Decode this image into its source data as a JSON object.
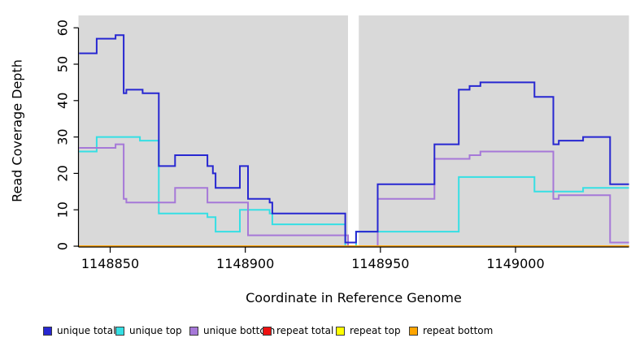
{
  "chart_data": {
    "type": "line",
    "subtype": "step",
    "xlabel": "Coordinate in Reference Genome",
    "ylabel": "Read Coverage Depth",
    "xlim": [
      1148838.5,
      1149042
    ],
    "ylim": [
      0,
      63.4
    ],
    "x_ticks": [
      1148850,
      1148900,
      1148950,
      1149000
    ],
    "y_ticks": [
      0,
      10,
      20,
      30,
      40,
      50,
      60
    ],
    "grid": false,
    "panel_background": "#d9d9d9",
    "gap_region": {
      "x_start": 1148938,
      "x_end": 1148942,
      "color": "#ffffff"
    },
    "legend_position": "bottom",
    "draw_order": [
      "unique top",
      "unique bottom",
      "unique total",
      "repeat total",
      "repeat top",
      "repeat bottom"
    ],
    "series": [
      {
        "name": "unique total",
        "color": "#2727d1",
        "steps": [
          [
            1148838.5,
            53
          ],
          [
            1148845,
            57
          ],
          [
            1148852,
            58
          ],
          [
            1148855,
            42
          ],
          [
            1148856,
            43
          ],
          [
            1148862,
            42
          ],
          [
            1148868,
            22
          ],
          [
            1148874,
            25
          ],
          [
            1148886,
            22
          ],
          [
            1148888,
            20
          ],
          [
            1148889,
            16
          ],
          [
            1148898,
            22
          ],
          [
            1148901,
            13
          ],
          [
            1148909,
            12
          ],
          [
            1148910,
            9
          ],
          [
            1148937,
            1
          ],
          [
            1148941,
            4
          ],
          [
            1148949,
            17
          ],
          [
            1148970,
            28
          ],
          [
            1148979,
            43
          ],
          [
            1148983,
            44
          ],
          [
            1148987,
            45
          ],
          [
            1149007,
            41
          ],
          [
            1149014,
            28
          ],
          [
            1149016,
            29
          ],
          [
            1149025,
            30
          ],
          [
            1149035,
            17
          ],
          [
            1149042,
            17
          ]
        ]
      },
      {
        "name": "unique top",
        "color": "#35dfe4",
        "steps": [
          [
            1148838.5,
            26
          ],
          [
            1148845,
            30
          ],
          [
            1148861,
            29
          ],
          [
            1148868,
            9
          ],
          [
            1148886,
            8
          ],
          [
            1148889,
            4
          ],
          [
            1148898,
            10
          ],
          [
            1148909,
            9
          ],
          [
            1148910,
            6
          ],
          [
            1148937,
            0
          ],
          [
            1148941,
            4
          ],
          [
            1148979,
            19
          ],
          [
            1149007,
            15
          ],
          [
            1149025,
            16
          ],
          [
            1149042,
            16
          ]
        ]
      },
      {
        "name": "unique bottom",
        "color": "#a678d8",
        "steps": [
          [
            1148838.5,
            27
          ],
          [
            1148852,
            28
          ],
          [
            1148855,
            13
          ],
          [
            1148856,
            12
          ],
          [
            1148874,
            16
          ],
          [
            1148886,
            12
          ],
          [
            1148901,
            3
          ],
          [
            1148938,
            0
          ],
          [
            1148949,
            13
          ],
          [
            1148970,
            24
          ],
          [
            1148983,
            25
          ],
          [
            1148987,
            26
          ],
          [
            1149014,
            13
          ],
          [
            1149016,
            14
          ],
          [
            1149035,
            1
          ],
          [
            1149042,
            1
          ]
        ]
      },
      {
        "name": "repeat total",
        "color": "#ee1111",
        "steps": [
          [
            1148838.5,
            0
          ],
          [
            1149042,
            0
          ]
        ]
      },
      {
        "name": "repeat top",
        "color": "#ffff00",
        "steps": [
          [
            1148838.5,
            0
          ],
          [
            1149042,
            0
          ]
        ]
      },
      {
        "name": "repeat bottom",
        "color": "#ffa500",
        "steps": [
          [
            1148838.5,
            0
          ],
          [
            1149042,
            0
          ]
        ]
      }
    ]
  },
  "titles": {
    "x_axis": "Coordinate in Reference Genome",
    "y_axis": "Read Coverage Depth"
  }
}
